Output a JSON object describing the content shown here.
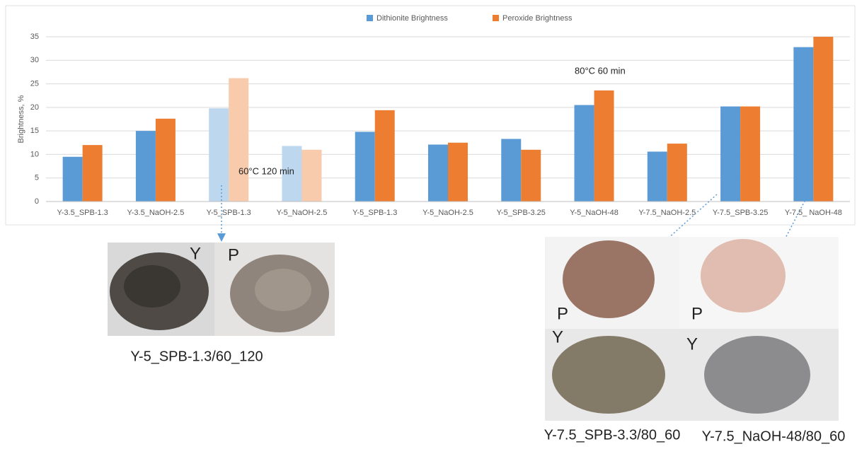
{
  "chart_data": {
    "type": "bar",
    "y_label": "Brightness, %",
    "categories": [
      "Y-3.5_SPB-1.3",
      "Y-3.5_NaOH-2.5",
      "Y-5_SPB-1.3",
      "Y-5_NaOH-2.5",
      "Y-5_SPB-1.3",
      "Y-5_NaOH-2.5",
      "Y-5_SPB-3.25",
      "Y-5_NaOH-48",
      "Y-7.5_NaOH-2.5",
      "Y-7.5_SPB-3.25",
      "Y-7.5_ NaOH-48"
    ],
    "series": [
      {
        "name": "Dithionite Brightness",
        "color": "#5b9bd5",
        "colors": [
          "#5b9bd5",
          "#5b9bd5",
          "#bdd7ee",
          "#bdd7ee",
          "#5b9bd5",
          "#5b9bd5",
          "#5b9bd5",
          "#5b9bd5",
          "#5b9bd5",
          "#5b9bd5",
          "#5b9bd5"
        ],
        "values": [
          9.5,
          15,
          19.8,
          11.8,
          14.8,
          12.1,
          13.3,
          20.5,
          10.6,
          20.2,
          32.8
        ]
      },
      {
        "name": "Peroxide Brightness",
        "color": "#ed7d31",
        "colors": [
          "#ed7d31",
          "#ed7d31",
          "#f8cbad",
          "#f8cbad",
          "#ed7d31",
          "#ed7d31",
          "#ed7d31",
          "#ed7d31",
          "#ed7d31",
          "#ed7d31",
          "#ed7d31"
        ],
        "values": [
          12,
          17.6,
          26.2,
          11,
          19.4,
          12.5,
          11,
          23.6,
          12.3,
          20.2,
          35
        ]
      }
    ],
    "ylim": [
      0,
      35
    ],
    "yticks": [
      0,
      5,
      10,
      15,
      20,
      25,
      30,
      35
    ],
    "grid": true,
    "legend": "top",
    "annotations": [
      "60°C  120 min",
      "80°C  60 min"
    ]
  },
  "photos": [
    {
      "letters": [
        "Y",
        "P"
      ],
      "caption": "Y-5_SPB-1.3/60_120"
    },
    {
      "letters": [
        "P",
        "P",
        "Y",
        "Y"
      ],
      "captions": [
        "Y-7.5_SPB-3.3/80_60",
        "Y-7.5_NaOH-48/80_60"
      ]
    }
  ]
}
